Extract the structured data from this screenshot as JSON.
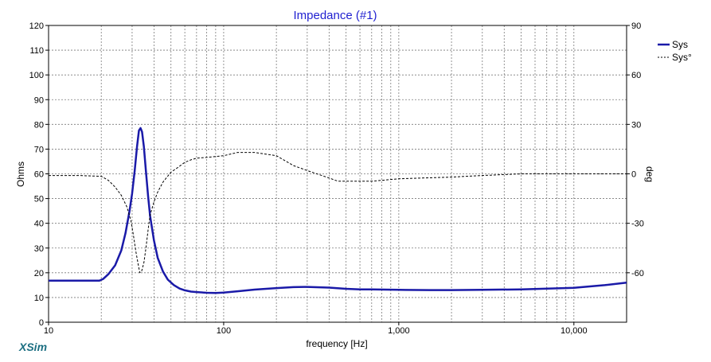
{
  "app": {
    "brand": "XSim"
  },
  "chart_data": {
    "type": "line",
    "title": "Impedance (#1)",
    "xlabel": "frequency [Hz]",
    "ylabel": "Ohms",
    "y2label": "deg",
    "x_scale": "log",
    "xlim": [
      10,
      20000
    ],
    "ylim": [
      0,
      120
    ],
    "y2lim": [
      -90,
      90
    ],
    "grid": true,
    "legend_position": "top-right",
    "x_ticks": [
      {
        "value": 10,
        "label": "10"
      },
      {
        "value": 100,
        "label": "100"
      },
      {
        "value": 1000,
        "label": "1,000"
      },
      {
        "value": 10000,
        "label": "10,000"
      }
    ],
    "y_ticks": [
      {
        "value": 0,
        "label": "0"
      },
      {
        "value": 10,
        "label": "10"
      },
      {
        "value": 20,
        "label": "20"
      },
      {
        "value": 30,
        "label": "30"
      },
      {
        "value": 40,
        "label": "40"
      },
      {
        "value": 50,
        "label": "50"
      },
      {
        "value": 60,
        "label": "60"
      },
      {
        "value": 70,
        "label": "70"
      },
      {
        "value": 80,
        "label": "80"
      },
      {
        "value": 90,
        "label": "90"
      },
      {
        "value": 100,
        "label": "100"
      },
      {
        "value": 110,
        "label": "110"
      },
      {
        "value": 120,
        "label": "120"
      }
    ],
    "y2_ticks": [
      {
        "value": 90,
        "label": "90"
      },
      {
        "value": 60,
        "label": "60"
      },
      {
        "value": 30,
        "label": "30"
      },
      {
        "value": 0,
        "label": "0"
      },
      {
        "value": -30,
        "label": "-30"
      },
      {
        "value": -60,
        "label": "-60"
      }
    ],
    "series": [
      {
        "name": "Sys",
        "axis": "left",
        "style": "solid",
        "color": "#1a1aa8",
        "x": [
          10,
          15,
          19.5,
          20.5,
          22,
          24,
          26,
          27.5,
          29,
          30,
          31,
          32,
          32.8,
          33.5,
          34.2,
          35,
          36,
          37,
          38,
          40,
          42,
          45,
          48,
          52,
          56,
          60,
          65,
          70,
          80,
          90,
          100,
          120,
          150,
          200,
          250,
          300,
          400,
          500,
          600,
          700,
          1000,
          1500,
          2000,
          3000,
          5000,
          10000,
          15000,
          20000
        ],
        "y": [
          16.8,
          16.8,
          16.8,
          17.5,
          19.5,
          23,
          29,
          36,
          45,
          52,
          61,
          71,
          77.5,
          78.5,
          77,
          71,
          61,
          51,
          43,
          33,
          26,
          20.5,
          17.2,
          15,
          13.6,
          12.9,
          12.4,
          12.2,
          11.9,
          11.8,
          12,
          12.5,
          13.2,
          13.8,
          14.2,
          14.3,
          14,
          13.5,
          13.3,
          13.3,
          13.1,
          13,
          13,
          13.1,
          13.3,
          13.9,
          15,
          16
        ]
      },
      {
        "name": "Sys°",
        "axis": "right",
        "style": "dashed",
        "color": "#000000",
        "x": [
          10,
          15,
          20,
          22,
          24,
          26,
          28,
          29.5,
          30.5,
          31.5,
          32.5,
          33.2,
          34,
          35,
          36,
          37,
          38,
          40,
          42,
          45,
          50,
          55,
          60,
          65,
          70,
          80,
          100,
          120,
          150,
          200,
          250,
          300,
          400,
          450,
          500,
          600,
          700,
          1000,
          2000,
          3000,
          5000,
          10000,
          20000
        ],
        "y": [
          -1,
          -1,
          -1.5,
          -4,
          -8,
          -13,
          -20,
          -28,
          -37,
          -47,
          -55,
          -60,
          -59,
          -54,
          -45,
          -34,
          -25,
          -17,
          -11,
          -5,
          1,
          4,
          7,
          8.5,
          9.5,
          10,
          11,
          13,
          13,
          11,
          5,
          2,
          -2.5,
          -4.5,
          -4.5,
          -4.5,
          -4.5,
          -3,
          -2,
          -1,
          0,
          0,
          0
        ]
      }
    ]
  }
}
